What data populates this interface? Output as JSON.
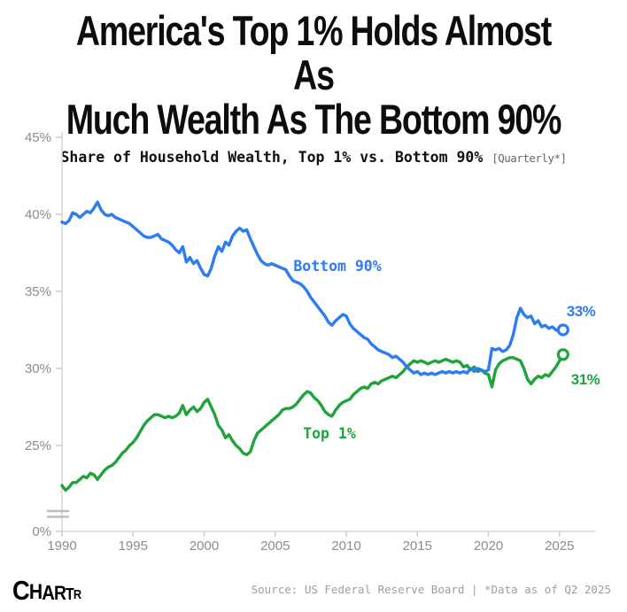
{
  "header": {
    "title_line1": "America's Top 1% Holds Almost As",
    "title_line2": "Much Wealth As The Bottom 90%",
    "subtitle": "Share of Household Wealth, Top 1% vs. Bottom 90%",
    "subtitle_note": "[Quarterly*]"
  },
  "chart_data": {
    "type": "line",
    "title": "Share of Household Wealth, Top 1% vs. Bottom 90%",
    "frequency": "Quarterly",
    "x_start_year": 1990,
    "x_step_years": 0.25,
    "x_end_label": "Q2 2025",
    "x_ticks": [
      "1990",
      "1995",
      "2000",
      "2005",
      "2010",
      "2015",
      "2020",
      "2025"
    ],
    "y_ticks": [
      {
        "value": 45,
        "label": "45%"
      },
      {
        "value": 40,
        "label": "40%"
      },
      {
        "value": 35,
        "label": "35%"
      },
      {
        "value": 30,
        "label": "30%"
      },
      {
        "value": 25,
        "label": "25%"
      },
      {
        "value": 0,
        "label": "0%",
        "broken_axis_below": true
      }
    ],
    "grid": false,
    "legend_position": "labels-on-lines",
    "axis_note": "y-axis broken between 0% and ~22%",
    "colors": {
      "bottom90": "#2d7cf4",
      "top1": "#1fa43c",
      "axis": "#d9d9d9",
      "tick_text": "#8c8c8c"
    },
    "series": [
      {
        "name": "Bottom 90%",
        "color": "#2d7cf4",
        "end_label": "33%",
        "end_value": 32.5,
        "values": [
          39.5,
          39.4,
          39.6,
          40.1,
          40.0,
          39.8,
          40.0,
          40.2,
          40.1,
          40.4,
          40.8,
          40.3,
          40.0,
          39.9,
          40.0,
          39.8,
          39.7,
          39.6,
          39.5,
          39.4,
          39.2,
          39.0,
          38.8,
          38.6,
          38.5,
          38.5,
          38.6,
          38.7,
          38.4,
          38.3,
          38.2,
          38.0,
          37.7,
          37.5,
          37.9,
          36.9,
          37.2,
          36.8,
          37.0,
          36.5,
          36.1,
          36.0,
          36.5,
          37.3,
          37.9,
          37.6,
          38.2,
          38.0,
          38.6,
          38.9,
          39.1,
          38.9,
          39.0,
          38.4,
          37.9,
          37.4,
          37.0,
          36.8,
          36.7,
          36.8,
          36.7,
          36.6,
          36.5,
          36.4,
          36.0,
          35.7,
          35.6,
          35.5,
          35.3,
          35.0,
          34.6,
          34.3,
          34.0,
          33.7,
          33.4,
          33.0,
          32.8,
          33.1,
          33.3,
          33.5,
          33.4,
          32.9,
          32.6,
          32.4,
          32.2,
          32.0,
          31.9,
          31.6,
          31.4,
          31.2,
          31.1,
          31.0,
          30.9,
          30.7,
          30.8,
          30.6,
          30.4,
          30.1,
          29.9,
          29.7,
          29.8,
          29.6,
          29.7,
          29.6,
          29.7,
          29.6,
          29.7,
          29.8,
          29.7,
          29.8,
          29.7,
          29.8,
          29.7,
          29.8,
          29.7,
          30.0,
          29.8,
          30.0,
          29.9,
          29.8,
          29.9,
          31.3,
          31.2,
          31.3,
          31.1,
          31.2,
          31.5,
          32.2,
          33.3,
          33.9,
          33.5,
          33.3,
          33.4,
          32.9,
          33.1,
          32.7,
          32.8,
          32.6,
          32.7,
          32.5,
          32.4,
          32.5
        ]
      },
      {
        "name": "Top 1%",
        "color": "#1fa43c",
        "end_label": "31%",
        "end_value": 30.9,
        "values": [
          22.4,
          22.1,
          22.3,
          22.6,
          22.6,
          22.8,
          23.0,
          22.9,
          23.2,
          23.1,
          22.8,
          23.1,
          23.4,
          23.6,
          23.7,
          23.9,
          24.2,
          24.5,
          24.7,
          25.0,
          25.2,
          25.5,
          25.9,
          26.3,
          26.6,
          26.8,
          27.0,
          27.0,
          26.9,
          26.8,
          26.9,
          26.8,
          26.9,
          27.1,
          27.6,
          27.0,
          27.3,
          27.5,
          27.2,
          27.4,
          27.8,
          28.0,
          27.5,
          27.0,
          26.3,
          26.0,
          25.5,
          25.7,
          25.3,
          25.0,
          24.8,
          24.5,
          24.4,
          24.6,
          25.3,
          25.8,
          26.0,
          26.2,
          26.4,
          26.6,
          26.8,
          27.0,
          27.3,
          27.4,
          27.4,
          27.5,
          27.7,
          28.0,
          28.3,
          28.5,
          28.4,
          28.1,
          27.9,
          27.6,
          27.2,
          27.0,
          26.9,
          27.3,
          27.6,
          27.8,
          27.9,
          28.0,
          28.3,
          28.5,
          28.7,
          28.8,
          28.7,
          29.0,
          29.1,
          29.0,
          29.2,
          29.3,
          29.4,
          29.5,
          29.4,
          29.6,
          29.8,
          30.1,
          30.3,
          30.5,
          30.4,
          30.5,
          30.4,
          30.3,
          30.4,
          30.5,
          30.4,
          30.5,
          30.6,
          30.5,
          30.4,
          30.5,
          30.4,
          30.1,
          30.2,
          29.9,
          30.1,
          29.8,
          29.9,
          29.7,
          29.6,
          28.8,
          29.9,
          30.3,
          30.5,
          30.6,
          30.7,
          30.7,
          30.6,
          30.5,
          30.0,
          29.3,
          29.0,
          29.3,
          29.5,
          29.4,
          29.6,
          29.5,
          29.8,
          30.1,
          30.5,
          30.9
        ]
      }
    ]
  },
  "footer": {
    "logo_letters": [
      "C",
      "H",
      "A",
      "R",
      "T",
      "R"
    ],
    "source": "Source: US Federal Reserve Board | *Data as of Q2 2025"
  }
}
